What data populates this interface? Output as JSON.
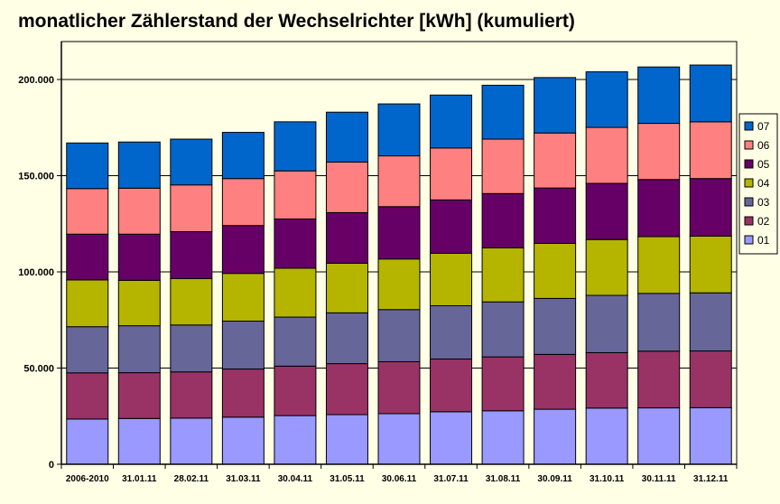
{
  "chart_data": {
    "type": "bar",
    "stacked": true,
    "title": "monatlicher Zählerstand der Wechselrichter [kWh] (kumuliert)",
    "xlabel": "",
    "ylabel": "",
    "categories": [
      "2006-2010",
      "31.01.11",
      "28.02.11",
      "31.03.11",
      "30.04.11",
      "31.05.11",
      "30.06.11",
      "31.07.11",
      "31.08.11",
      "30.09.11",
      "31.10.11",
      "30.11.11",
      "31.12.11"
    ],
    "ylim": [
      0,
      200000
    ],
    "yticks": [
      0,
      50000,
      100000,
      150000,
      200000
    ],
    "ytick_labels": [
      "0",
      "50.000",
      "100.000",
      "150.000",
      "200.000"
    ],
    "grid": true,
    "legend_position": "right",
    "series": [
      {
        "name": "01",
        "color": "#9999ff",
        "values": [
          23500,
          23800,
          24000,
          24500,
          25300,
          25800,
          26300,
          27300,
          27800,
          28600,
          29200,
          29300,
          29400
        ]
      },
      {
        "name": "02",
        "color": "#993366",
        "values": [
          24000,
          23800,
          24000,
          25000,
          25700,
          26500,
          27000,
          27400,
          28000,
          28500,
          28800,
          29500,
          29500
        ]
      },
      {
        "name": "03",
        "color": "#666699",
        "values": [
          24000,
          24400,
          24400,
          24900,
          25500,
          26400,
          27100,
          27700,
          28600,
          29100,
          29800,
          30000,
          30200
        ]
      },
      {
        "name": "04",
        "color": "#b5b500",
        "values": [
          24300,
          23600,
          24100,
          24800,
          25400,
          25800,
          26300,
          27300,
          28100,
          28600,
          29000,
          29500,
          29500
        ]
      },
      {
        "name": "05",
        "color": "#660066",
        "values": [
          23800,
          24000,
          24400,
          24900,
          25600,
          26300,
          27200,
          27700,
          28200,
          28800,
          29200,
          29700,
          29900
        ]
      },
      {
        "name": "06",
        "color": "#ff8080",
        "values": [
          23700,
          23900,
          24300,
          24400,
          25000,
          26300,
          26400,
          27000,
          28300,
          28600,
          29100,
          29200,
          29500
        ]
      },
      {
        "name": "07",
        "color": "#0066cc",
        "values": [
          23700,
          24000,
          23800,
          24000,
          25500,
          25900,
          27000,
          27500,
          28000,
          28800,
          28900,
          29300,
          29500
        ]
      }
    ]
  }
}
